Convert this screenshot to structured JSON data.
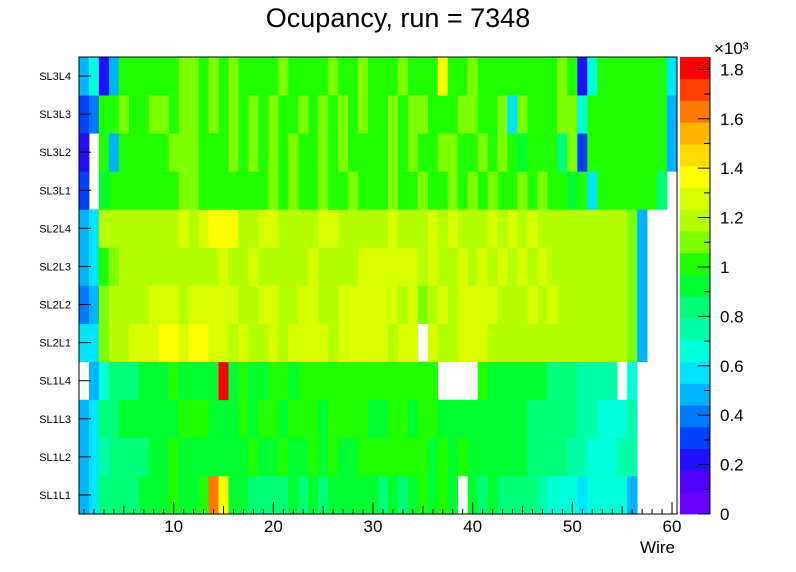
{
  "chart_data": {
    "type": "heatmap",
    "title": "Ocupancy, run = 7348",
    "xlabel": "Wire",
    "ylabel": "",
    "xlim": [
      0.5,
      60.5
    ],
    "x_ticks": [
      "10",
      "20",
      "30",
      "40",
      "50",
      "60"
    ],
    "y_categories": [
      "SL1L1",
      "SL1L2",
      "SL1L3",
      "SL1L4",
      "SL2L1",
      "SL2L2",
      "SL2L3",
      "SL2L4",
      "SL3L1",
      "SL3L2",
      "SL3L3",
      "SL3L4"
    ],
    "z_range": [
      0,
      1.85
    ],
    "z_multiplier_label": "×10³",
    "z_ticks": [
      "0",
      "0.2",
      "0.4",
      "0.6",
      "0.8",
      "1",
      "1.2",
      "1.4",
      "1.6",
      "1.8"
    ],
    "palette": [
      "#6a00ff",
      "#5000ff",
      "#2010ff",
      "#0040ff",
      "#0078ff",
      "#00b4ff",
      "#00e4ff",
      "#00ffd8",
      "#00ffa8",
      "#00ff78",
      "#00ff30",
      "#20ff00",
      "#7cff00",
      "#b4ff00",
      "#d8ff00",
      "#ffff00",
      "#ffdc00",
      "#ffb400",
      "#ff7800",
      "#ff4000",
      "#ff0000"
    ],
    "rows": [
      {
        "name": "SL1L1",
        "values": [
          0.45,
          0.6,
          0.8,
          0.8,
          0.85,
          0.85,
          0.9,
          0.95,
          0.95,
          1.0,
          0.95,
          0.9,
          1.0,
          1.6,
          1.4,
          0.95,
          0.9,
          0.85,
          0.85,
          0.85,
          0.85,
          0.9,
          0.85,
          0.9,
          0.85,
          0.9,
          0.9,
          0.9,
          0.95,
          0.95,
          0.85,
          0.9,
          0.85,
          0.95,
          1.0,
          0.9,
          1.0,
          0.95,
          null,
          0.9,
          0.85,
          0.9,
          0.85,
          0.85,
          0.8,
          0.8,
          0.75,
          0.7,
          0.7,
          0.7,
          0.6,
          0.65,
          0.65,
          0.7,
          0.7,
          0.5,
          null,
          null,
          null,
          null
        ]
      },
      {
        "name": "SL1L2",
        "values": [
          0.45,
          0.55,
          0.75,
          0.8,
          0.8,
          0.8,
          0.85,
          0.9,
          0.9,
          1.0,
          0.95,
          0.95,
          0.95,
          0.95,
          0.95,
          0.9,
          0.95,
          1.0,
          0.95,
          0.95,
          1.0,
          0.95,
          0.95,
          1.0,
          0.95,
          1.0,
          0.95,
          0.95,
          1.0,
          1.0,
          1.0,
          1.0,
          1.0,
          1.0,
          1.0,
          0.95,
          1.0,
          0.95,
          1.0,
          0.95,
          0.95,
          0.9,
          0.9,
          0.95,
          0.9,
          0.85,
          0.8,
          0.8,
          0.8,
          0.75,
          0.75,
          0.7,
          0.7,
          0.7,
          0.75,
          0.75,
          null,
          null,
          null,
          null
        ]
      },
      {
        "name": "SL1L3",
        "values": [
          0.45,
          0.6,
          0.8,
          0.85,
          0.9,
          0.9,
          0.95,
          0.95,
          0.95,
          0.95,
          1.0,
          1.0,
          1.0,
          0.95,
          0.9,
          0.95,
          1.0,
          0.95,
          1.0,
          1.0,
          0.95,
          1.0,
          1.0,
          1.0,
          0.95,
          1.0,
          1.0,
          1.0,
          1.0,
          0.95,
          0.95,
          1.0,
          1.0,
          0.95,
          1.0,
          1.0,
          0.95,
          0.95,
          0.95,
          0.95,
          0.95,
          0.95,
          0.9,
          0.9,
          0.9,
          0.85,
          0.85,
          0.8,
          0.8,
          0.8,
          0.75,
          0.75,
          0.7,
          0.7,
          0.7,
          0.75,
          null,
          null,
          null,
          null
        ]
      },
      {
        "name": "SL1L4",
        "values": [
          null,
          0.5,
          0.65,
          0.8,
          0.85,
          0.8,
          0.9,
          0.9,
          0.95,
          1.0,
          0.95,
          0.95,
          0.95,
          0.95,
          1.8,
          0.95,
          1.0,
          0.9,
          0.95,
          1.0,
          1.0,
          0.95,
          1.0,
          1.05,
          1.0,
          1.0,
          1.0,
          1.0,
          1.0,
          1.05,
          1.0,
          1.0,
          1.0,
          1.0,
          1.05,
          1.0,
          null,
          null,
          null,
          null,
          1.0,
          0.95,
          0.95,
          0.95,
          0.9,
          0.9,
          0.9,
          0.8,
          0.8,
          0.8,
          0.75,
          0.75,
          0.75,
          0.75,
          null,
          0.7,
          null,
          null,
          null,
          null
        ]
      },
      {
        "name": "SL2L1",
        "values": [
          0.55,
          0.6,
          1.1,
          1.15,
          1.2,
          1.25,
          1.3,
          1.3,
          1.35,
          1.35,
          1.3,
          1.35,
          1.35,
          1.25,
          1.3,
          1.2,
          1.25,
          1.2,
          1.2,
          1.25,
          1.2,
          1.25,
          1.25,
          1.25,
          1.3,
          1.2,
          1.25,
          1.25,
          1.3,
          1.3,
          1.25,
          1.2,
          1.3,
          1.25,
          null,
          1.3,
          1.2,
          1.2,
          1.3,
          1.25,
          1.25,
          1.2,
          1.2,
          1.2,
          1.2,
          1.2,
          1.2,
          1.15,
          1.15,
          1.2,
          1.15,
          1.15,
          1.2,
          1.2,
          1.15,
          1.1,
          0.45,
          null,
          null,
          null
        ]
      },
      {
        "name": "SL2L2",
        "values": [
          0.4,
          0.5,
          1.1,
          1.2,
          1.15,
          1.2,
          1.2,
          1.25,
          1.25,
          1.25,
          1.2,
          1.25,
          1.25,
          1.25,
          1.3,
          1.25,
          1.2,
          1.2,
          1.25,
          1.25,
          1.2,
          1.2,
          1.25,
          1.25,
          1.2,
          1.2,
          1.25,
          1.25,
          1.3,
          1.3,
          1.3,
          1.25,
          1.2,
          1.25,
          1.1,
          1.2,
          1.25,
          1.2,
          1.25,
          1.25,
          1.25,
          1.25,
          1.2,
          1.2,
          1.2,
          1.3,
          1.2,
          1.25,
          1.2,
          1.2,
          1.2,
          1.2,
          1.2,
          1.2,
          1.15,
          1.1,
          0.45,
          null,
          null,
          null
        ]
      },
      {
        "name": "SL2L3",
        "values": [
          0.45,
          0.55,
          1.05,
          1.1,
          1.15,
          1.2,
          1.2,
          1.2,
          1.2,
          1.2,
          1.2,
          1.15,
          1.2,
          1.2,
          1.25,
          1.2,
          1.2,
          1.25,
          1.15,
          1.2,
          1.2,
          1.2,
          1.2,
          1.25,
          1.2,
          1.2,
          1.2,
          1.2,
          1.3,
          1.3,
          1.3,
          1.25,
          1.25,
          1.3,
          1.2,
          1.25,
          1.2,
          1.2,
          1.25,
          1.2,
          1.25,
          1.2,
          1.25,
          1.2,
          1.25,
          1.2,
          1.25,
          1.2,
          1.2,
          1.2,
          1.2,
          1.2,
          1.2,
          1.2,
          1.15,
          1.1,
          0.45,
          null,
          null,
          null
        ]
      },
      {
        "name": "SL2L4",
        "values": [
          0.5,
          0.6,
          1.15,
          1.2,
          1.2,
          1.2,
          1.2,
          1.2,
          1.2,
          1.2,
          1.25,
          1.2,
          1.25,
          1.35,
          1.35,
          1.35,
          1.2,
          1.2,
          1.25,
          1.25,
          1.2,
          1.2,
          1.2,
          1.2,
          1.25,
          1.3,
          1.2,
          1.2,
          1.2,
          1.2,
          1.2,
          1.25,
          1.2,
          1.2,
          1.2,
          1.25,
          1.2,
          1.25,
          1.2,
          1.2,
          1.2,
          1.25,
          1.2,
          1.25,
          1.2,
          1.25,
          1.2,
          1.2,
          1.2,
          1.2,
          1.2,
          1.2,
          1.2,
          1.2,
          1.15,
          1.1,
          0.45,
          null,
          null,
          null
        ]
      },
      {
        "name": "SL3L1",
        "values": [
          0.3,
          null,
          0.95,
          1.0,
          1.05,
          1.05,
          1.05,
          1.05,
          1.05,
          1.0,
          1.1,
          1.1,
          1.05,
          1.05,
          1.05,
          1.0,
          1.0,
          1.0,
          1.05,
          1.1,
          1.05,
          1.1,
          1.0,
          1.0,
          1.1,
          1.05,
          1.05,
          1.1,
          1.05,
          1.05,
          1.05,
          1.1,
          1.05,
          1.05,
          1.1,
          1.05,
          1.05,
          1.1,
          1.05,
          1.1,
          1.05,
          1.1,
          1.0,
          1.0,
          1.1,
          1.05,
          1.1,
          1.05,
          1.05,
          0.95,
          1.0,
          0.55,
          1.0,
          1.05,
          1.05,
          1.05,
          1.05,
          1.05,
          0.85,
          null
        ]
      },
      {
        "name": "SL3L2",
        "values": [
          0.2,
          null,
          1.05,
          0.5,
          1.05,
          1.05,
          1.05,
          1.05,
          1.05,
          1.1,
          1.1,
          1.1,
          1.05,
          1.05,
          1.05,
          1.1,
          1.05,
          1.1,
          1.05,
          1.1,
          1.05,
          1.1,
          1.05,
          1.05,
          1.1,
          1.05,
          1.1,
          1.05,
          1.05,
          1.05,
          1.05,
          1.1,
          1.05,
          1.1,
          1.05,
          1.05,
          1.1,
          1.1,
          1.05,
          1.05,
          1.1,
          1.05,
          1.1,
          1.05,
          0.95,
          1.0,
          1.05,
          1.05,
          0.85,
          1.1,
          0.35,
          1.05,
          1.0,
          1.05,
          1.05,
          1.05,
          1.05,
          1.05,
          1.05,
          0.5
        ]
      },
      {
        "name": "SL3L3",
        "values": [
          0.35,
          0.4,
          1.05,
          1.05,
          1.1,
          1.05,
          1.05,
          1.1,
          1.1,
          1.05,
          1.1,
          1.1,
          1.05,
          1.1,
          1.05,
          1.1,
          1.05,
          1.1,
          1.05,
          1.1,
          1.05,
          1.05,
          1.1,
          1.05,
          1.1,
          1.05,
          1.1,
          1.05,
          1.1,
          1.05,
          1.05,
          1.1,
          1.05,
          1.1,
          1.1,
          1.05,
          1.05,
          1.05,
          1.1,
          1.1,
          1.05,
          1.05,
          1.1,
          0.55,
          1.1,
          1.05,
          1.0,
          1.05,
          1.1,
          1.1,
          0.7,
          1.05,
          1.05,
          1.05,
          1.05,
          1.05,
          1.05,
          1.05,
          1.0,
          0.5
        ]
      },
      {
        "name": "SL3L4",
        "values": [
          0.5,
          0.65,
          0.25,
          0.5,
          1.05,
          1.05,
          1.05,
          1.05,
          1.05,
          1.05,
          1.1,
          1.1,
          1.05,
          1.1,
          1.05,
          1.1,
          1.05,
          1.05,
          1.05,
          1.05,
          1.1,
          1.05,
          1.05,
          1.05,
          1.05,
          1.1,
          1.05,
          1.05,
          1.1,
          1.05,
          1.05,
          1.05,
          1.1,
          1.05,
          1.05,
          1.05,
          1.4,
          1.05,
          1.05,
          1.1,
          1.05,
          1.05,
          1.05,
          1.05,
          1.05,
          1.05,
          1.05,
          1.05,
          1.1,
          1.05,
          0.25,
          0.65,
          1.05,
          1.0,
          1.05,
          1.05,
          1.05,
          1.05,
          1.05,
          0.55
        ]
      }
    ]
  }
}
